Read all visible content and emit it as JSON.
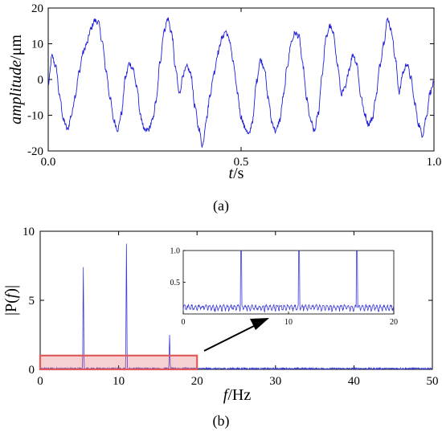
{
  "chart_data": [
    {
      "id": "a",
      "type": "line",
      "panel_label": "(a)",
      "xlabel": {
        "var": "t",
        "unit": "/s"
      },
      "ylabel": {
        "var": "amplitude",
        "unit": "/μm"
      },
      "xlim": [
        0.0,
        1.0
      ],
      "ylim": [
        -20,
        20
      ],
      "xticks": [
        "0.0",
        "0.5",
        "1.0"
      ],
      "yticks": [
        "-20",
        "-10",
        "0",
        "10",
        "20"
      ],
      "color": "#1f1fd6",
      "series": [
        {
          "x": [
            0.0,
            0.01,
            0.02,
            0.03,
            0.04,
            0.05,
            0.06,
            0.07,
            0.08,
            0.09,
            0.1,
            0.11,
            0.12,
            0.13,
            0.14,
            0.15,
            0.16,
            0.17,
            0.18,
            0.19,
            0.2,
            0.21,
            0.22,
            0.23,
            0.24,
            0.25,
            0.26,
            0.27,
            0.28,
            0.29,
            0.3,
            0.31,
            0.32,
            0.33,
            0.34,
            0.35,
            0.36,
            0.37,
            0.38,
            0.39,
            0.4,
            0.41,
            0.42,
            0.43,
            0.44,
            0.45,
            0.46,
            0.47,
            0.48,
            0.49,
            0.5,
            0.51,
            0.52,
            0.53,
            0.54,
            0.55,
            0.56,
            0.57,
            0.58,
            0.59,
            0.6,
            0.61,
            0.62,
            0.63,
            0.64,
            0.65,
            0.66,
            0.67,
            0.68,
            0.69,
            0.7,
            0.71,
            0.72,
            0.73,
            0.74,
            0.75,
            0.76,
            0.77,
            0.78,
            0.79,
            0.8,
            0.81,
            0.82,
            0.83,
            0.84,
            0.85,
            0.86,
            0.87,
            0.88,
            0.89,
            0.9,
            0.91,
            0.92,
            0.93,
            0.94,
            0.95,
            0.96,
            0.97,
            0.98,
            0.99,
            1.0
          ],
          "y": [
            -1.5,
            6.5,
            3.5,
            -5.0,
            -11.5,
            -14.0,
            -10.0,
            -4.5,
            2.0,
            7.5,
            10.0,
            14.0,
            16.5,
            16.0,
            10.5,
            2.5,
            -5.0,
            -11.5,
            -14.0,
            -9.5,
            0.5,
            4.5,
            3.0,
            -2.5,
            -10.5,
            -14.5,
            -14.0,
            -11.5,
            -6.0,
            5.0,
            13.5,
            17.0,
            13.0,
            3.0,
            -4.0,
            1.5,
            3.5,
            1.5,
            -7.5,
            -13.5,
            -18.5,
            -11.0,
            -4.0,
            2.0,
            7.5,
            11.5,
            13.5,
            11.0,
            4.5,
            -3.5,
            -10.5,
            -13.5,
            -15.5,
            -11.5,
            -0.5,
            5.5,
            3.5,
            -5.0,
            -12.0,
            -14.5,
            -11.5,
            -4.5,
            4.0,
            10.5,
            13.0,
            12.0,
            4.0,
            -5.5,
            -11.5,
            -14.5,
            -9.5,
            1.5,
            11.5,
            15.0,
            12.5,
            4.0,
            -4.0,
            -2.5,
            3.0,
            7.0,
            4.5,
            -4.5,
            -9.5,
            -12.5,
            -11.0,
            -4.5,
            4.0,
            10.5,
            17.0,
            13.5,
            5.5,
            -3.5,
            2.0,
            4.5,
            0.5,
            -6.5,
            -12.5,
            -15.5,
            -10.5,
            -3.5,
            -1.0
          ]
        }
      ]
    },
    {
      "id": "b",
      "type": "line",
      "panel_label": "(b)",
      "xlabel": {
        "var": "f",
        "unit": "/Hz"
      },
      "ylabel": {
        "pre": "|P(",
        "var": "f",
        "post": ")|"
      },
      "xlim": [
        0,
        50
      ],
      "ylim": [
        0,
        10
      ],
      "xticks": [
        "0",
        "10",
        "20",
        "30",
        "40",
        "50"
      ],
      "yticks": [
        "0",
        "5",
        "10"
      ],
      "color": "#3a3ad8",
      "series": [
        {
          "peaks": [
            {
              "x": 5.5,
              "y": 7.4
            },
            {
              "x": 11.0,
              "y": 9.1
            },
            {
              "x": 16.5,
              "y": 2.5
            }
          ],
          "noise_level": 0.08
        }
      ],
      "highlight": {
        "x": [
          0,
          20
        ],
        "y": [
          0,
          1
        ],
        "color": "#e05a5a"
      },
      "inset": {
        "xlim": [
          0,
          20
        ],
        "ylim": [
          0,
          1.0
        ],
        "xticks": [
          "0",
          "10",
          "20"
        ],
        "yticks": [
          "0.5",
          "1.0"
        ],
        "noise_level": 0.1
      }
    }
  ]
}
